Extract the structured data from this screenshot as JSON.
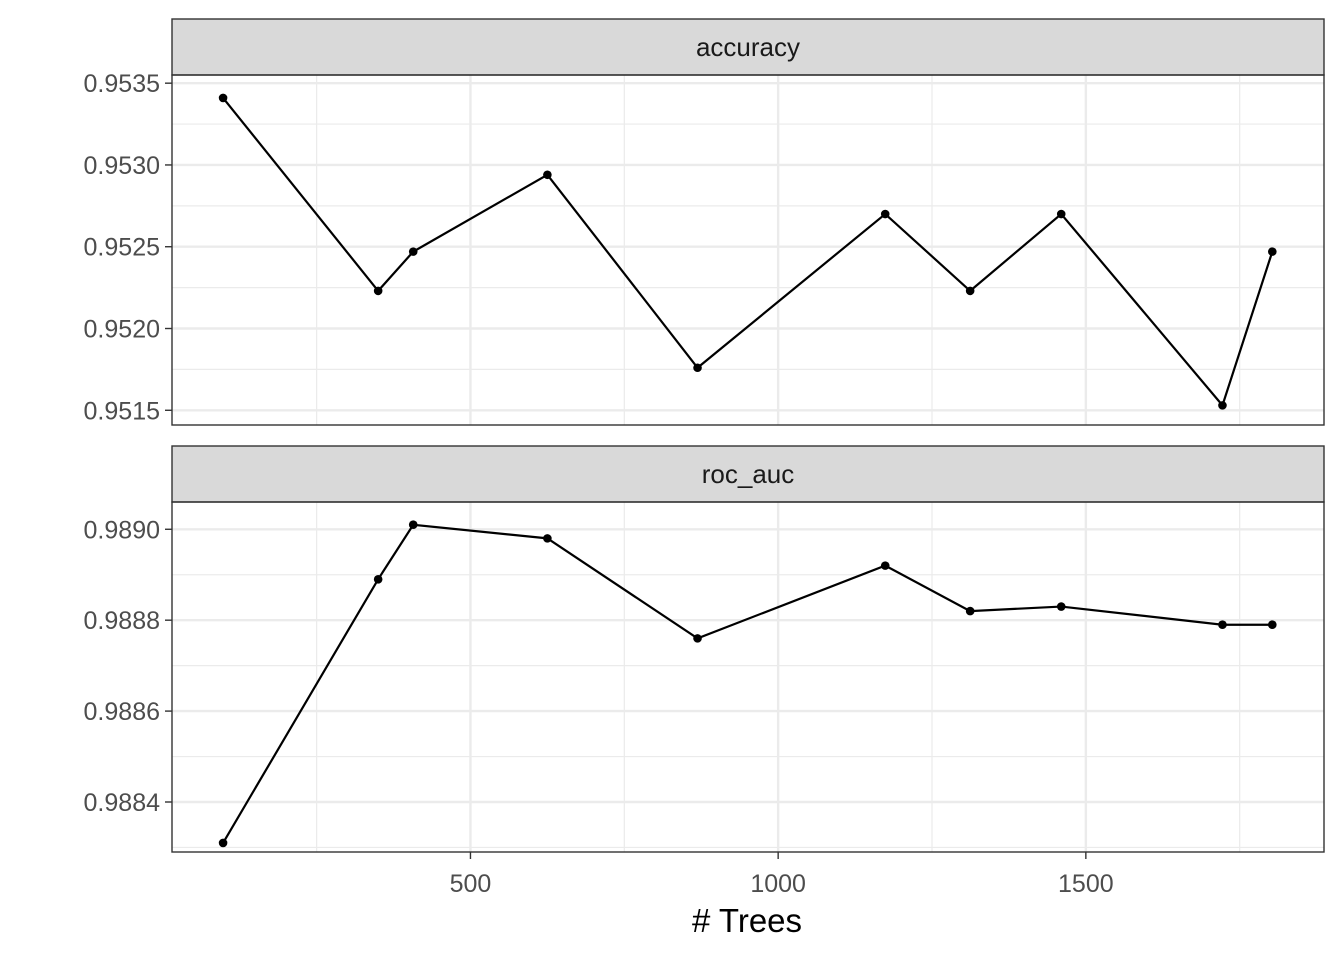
{
  "chart_data": {
    "type": "line",
    "xlabel": "# Trees",
    "x_ticks": [
      500,
      1000,
      1500
    ],
    "x_tick_labels": [
      "500",
      "1000",
      "1500"
    ],
    "xlim": [
      15,
      1887
    ],
    "grid": true,
    "panels": [
      {
        "strip_label": "accuracy",
        "ylim": [
          0.95141,
          0.95355
        ],
        "y_ticks": [
          0.9515,
          0.952,
          0.9525,
          0.953,
          0.9535
        ],
        "y_tick_labels": [
          "0.9515",
          "0.9520",
          "0.9525",
          "0.9530",
          "0.9535"
        ],
        "x": [
          98,
          350,
          407,
          625,
          869,
          1174,
          1312,
          1460,
          1722,
          1803
        ],
        "y": [
          0.95341,
          0.95223,
          0.95247,
          0.95294,
          0.95176,
          0.9527,
          0.95223,
          0.9527,
          0.95153,
          0.95247
        ]
      },
      {
        "strip_label": "roc_auc",
        "ylim": [
          0.98829,
          0.98906
        ],
        "y_ticks": [
          0.9884,
          0.9886,
          0.9888,
          0.989
        ],
        "y_tick_labels": [
          "0.9884",
          "0.9886",
          "0.9888",
          "0.9890"
        ],
        "x": [
          98,
          350,
          407,
          625,
          869,
          1174,
          1312,
          1460,
          1722,
          1803
        ],
        "y": [
          0.98831,
          0.98889,
          0.98901,
          0.98898,
          0.98876,
          0.98892,
          0.98882,
          0.98883,
          0.98879,
          0.98879
        ]
      }
    ]
  },
  "colors": {
    "line": "#000000",
    "point": "#000000",
    "grid": "#ebebeb",
    "strip_fill": "#d9d9d9",
    "panel_border": "#333333",
    "tick_text": "#4d4d4d"
  }
}
